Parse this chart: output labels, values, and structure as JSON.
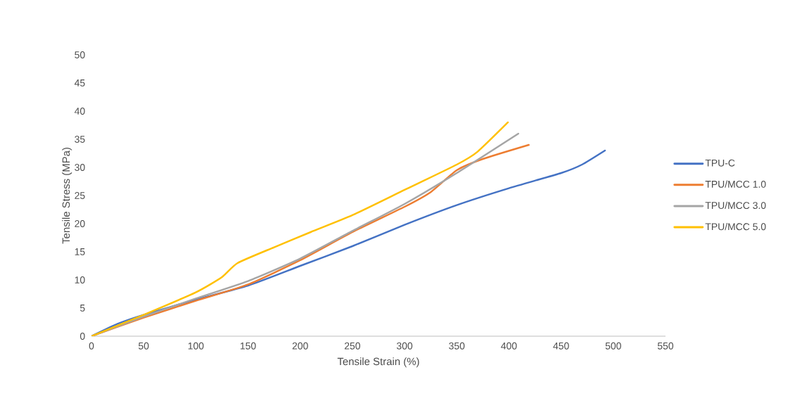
{
  "chart_data": {
    "type": "line",
    "xlabel": "Tensile Strain (%)",
    "ylabel": "Tensile Stress (MPa)",
    "xlim": [
      0,
      550
    ],
    "xticks": [
      0,
      50,
      100,
      150,
      200,
      250,
      300,
      350,
      400,
      450,
      500,
      550
    ],
    "ylim": [
      0,
      50
    ],
    "yticks": [
      0,
      5,
      10,
      15,
      20,
      25,
      30,
      35,
      40,
      45,
      50
    ],
    "grid": false,
    "legend": "right",
    "marker": "none",
    "line_style": "solid",
    "series": [
      {
        "name": "TPU-C",
        "color": "#4472c4",
        "x": [
          0,
          25,
          50,
          100,
          150,
          200,
          250,
          300,
          350,
          400,
          450,
          470,
          492
        ],
        "values": [
          0,
          2.2,
          3.8,
          6.5,
          9,
          12.5,
          16,
          19.8,
          23.3,
          26.3,
          29,
          30.5,
          33
        ]
      },
      {
        "name": "TPU/MCC 1.0",
        "color": "#ed7d31",
        "x": [
          0,
          50,
          100,
          150,
          200,
          250,
          300,
          325,
          350,
          375,
          419
        ],
        "values": [
          0,
          3.3,
          6.3,
          9.2,
          13.5,
          18.5,
          23,
          25.6,
          29.5,
          31.5,
          34
        ]
      },
      {
        "name": "TPU/MCC 3.0",
        "color": "#a5a5a5",
        "x": [
          0,
          50,
          100,
          150,
          200,
          250,
          300,
          350,
          409
        ],
        "values": [
          0,
          3.5,
          6.7,
          9.8,
          13.8,
          18.7,
          23.5,
          29,
          36
        ]
      },
      {
        "name": "TPU/MCC 5.0",
        "color": "#ffc000",
        "x": [
          0,
          50,
          100,
          125,
          140,
          175,
          210,
          250,
          300,
          350,
          370,
          399
        ],
        "values": [
          0,
          3.8,
          7.8,
          10.5,
          13,
          15.8,
          18.5,
          21.5,
          26,
          30.5,
          32.8,
          38
        ]
      }
    ]
  }
}
